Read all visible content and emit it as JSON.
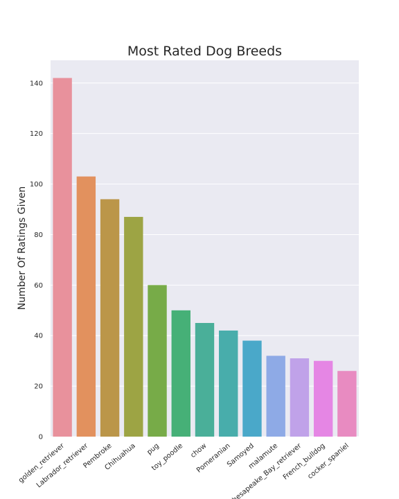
{
  "chart_data": {
    "type": "bar",
    "title": "Most Rated Dog Breeds",
    "xlabel": "",
    "ylabel": "Number Of Ratings Given",
    "ylim": [
      0,
      149
    ],
    "yticks": [
      0,
      20,
      40,
      60,
      80,
      100,
      120,
      140
    ],
    "grid": true,
    "categories": [
      "golden_retriever",
      "Labrador_retriever",
      "Pembroke",
      "Chihuahua",
      "pug",
      "toy_poodle",
      "chow",
      "Pomeranian",
      "Samoyed",
      "malamute",
      "Chesapeake_Bay_retriever",
      "French_bulldog",
      "cocker_spaniel"
    ],
    "values": [
      142,
      103,
      94,
      87,
      60,
      50,
      45,
      42,
      38,
      32,
      31,
      30,
      26
    ],
    "colors": [
      "#e8919c",
      "#e2915e",
      "#bb9649",
      "#9da444",
      "#77ab48",
      "#46b077",
      "#4aaf99",
      "#48adab",
      "#4aa8c9",
      "#8eaae6",
      "#c0a2e9",
      "#e586e4",
      "#e88bc1"
    ],
    "plot_background": "#eaeaf2",
    "grid_color": "#ffffff"
  }
}
